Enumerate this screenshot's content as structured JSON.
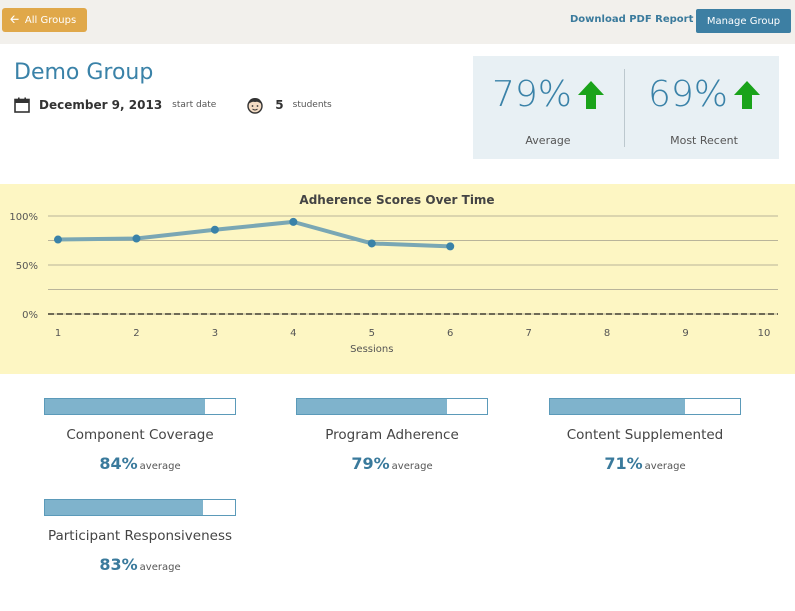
{
  "toolbar": {
    "back_label": "All Groups",
    "download_label": "Download PDF Report",
    "manage_label": "Manage Group"
  },
  "group": {
    "title": "Demo Group",
    "start_date": "December 9, 2013",
    "start_date_label": "start date",
    "student_count": "5",
    "students_label": "students"
  },
  "stats": {
    "average": {
      "value": "79%",
      "caption": "Average",
      "trend": "up",
      "icon": "arrow-up-icon"
    },
    "recent": {
      "value": "69%",
      "caption": "Most Recent",
      "trend": "up",
      "icon": "arrow-up-icon"
    },
    "trend_color": "#1aa31a"
  },
  "chart_data": {
    "type": "line",
    "title": "Adherence Scores Over Time",
    "xlabel": "Sessions",
    "ylabel": "",
    "x": [
      1,
      2,
      3,
      4,
      5,
      6
    ],
    "xticks": [
      "1",
      "2",
      "3",
      "4",
      "5",
      "6",
      "7",
      "8",
      "9",
      "10"
    ],
    "yticks": [
      "0%",
      "50%",
      "100%"
    ],
    "ylim": [
      0,
      100
    ],
    "xlim": [
      1,
      10
    ],
    "series": [
      {
        "values": [
          76,
          77,
          86,
          94,
          72,
          69
        ]
      }
    ],
    "grid": true,
    "colors": {
      "line": "#7aa7b4",
      "point": "#3a82a8",
      "background": "#fdf6c3"
    }
  },
  "metrics": [
    {
      "label": "Component Coverage",
      "value": "84%",
      "suffix": "average",
      "fill": 0.84
    },
    {
      "label": "Program Adherence",
      "value": "79%",
      "suffix": "average",
      "fill": 0.79
    },
    {
      "label": "Content Supplemented",
      "value": "71%",
      "suffix": "average",
      "fill": 0.71
    },
    {
      "label": "Participant Responsiveness",
      "value": "83%",
      "suffix": "average",
      "fill": 0.83
    }
  ]
}
